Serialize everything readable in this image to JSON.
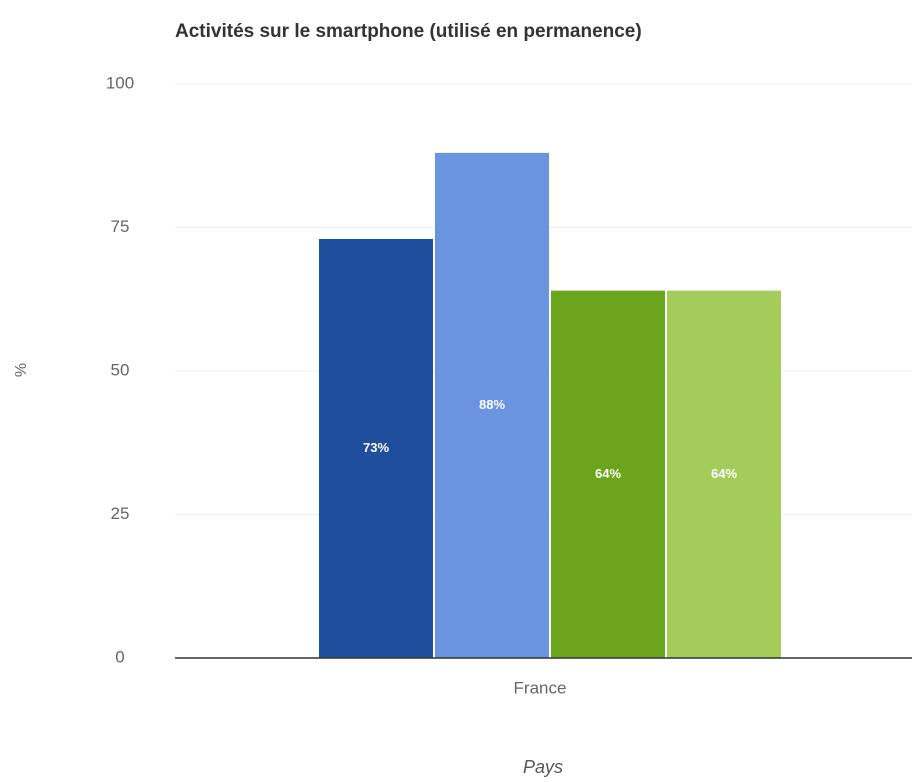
{
  "chart_data": {
    "type": "bar",
    "title": "Activités sur le smartphone (utilisé en permanence)",
    "x_label": "Pays",
    "y_label": "%",
    "categories": [
      "France"
    ],
    "series": [
      {
        "color": "#1f4e9c",
        "values": [
          73
        ],
        "value_labels": [
          "73%"
        ]
      },
      {
        "color": "#6a94e0",
        "values": [
          88
        ],
        "value_labels": [
          "88%"
        ]
      },
      {
        "color": "#6aa51c",
        "values": [
          64
        ],
        "value_labels": [
          "64%"
        ]
      },
      {
        "color": "#a3cc5a",
        "values": [
          64
        ],
        "value_labels": [
          "64%"
        ]
      }
    ],
    "ylim": [
      0,
      100
    ],
    "yticks": [
      0,
      25,
      50,
      75,
      100
    ],
    "grid": true
  }
}
